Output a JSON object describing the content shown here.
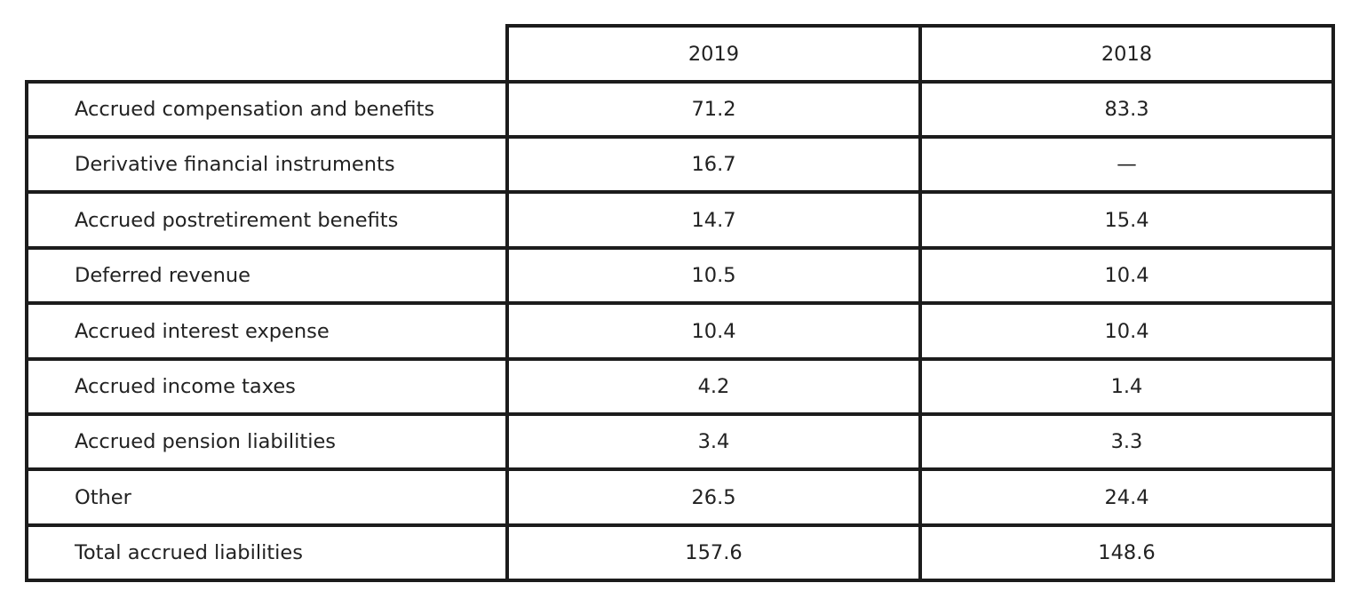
{
  "chart_data": {
    "type": "table",
    "columns": [
      "",
      "2019",
      "2018"
    ],
    "rows": [
      {
        "label": "Accrued compensation and benefits",
        "values": [
          "71.2",
          "83.3"
        ]
      },
      {
        "label": "Derivative financial instruments",
        "values": [
          "16.7",
          "—"
        ]
      },
      {
        "label": "Accrued postretirement benefits",
        "values": [
          "14.7",
          "15.4"
        ]
      },
      {
        "label": "Deferred revenue",
        "values": [
          "10.5",
          "10.4"
        ]
      },
      {
        "label": "Accrued interest expense",
        "values": [
          "10.4",
          "10.4"
        ]
      },
      {
        "label": "Accrued income taxes",
        "values": [
          "4.2",
          "1.4"
        ]
      },
      {
        "label": "Accrued pension liabilities",
        "values": [
          "3.4",
          "3.3"
        ]
      },
      {
        "label": "Other",
        "values": [
          "26.5",
          "24.4"
        ]
      },
      {
        "label": "Total accrued liabilities",
        "values": [
          "157.6",
          "148.6"
        ]
      }
    ]
  }
}
